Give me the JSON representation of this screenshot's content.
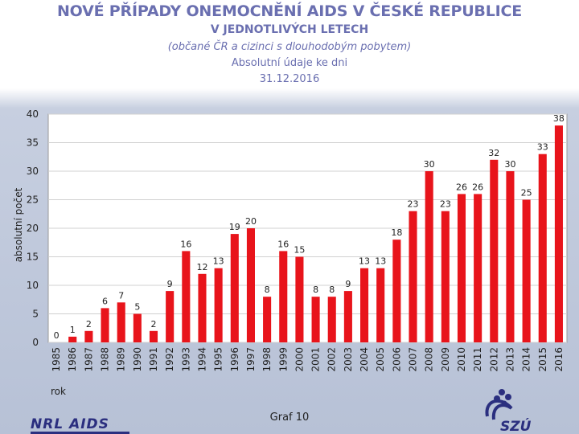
{
  "header": {
    "title": "NOVÉ PŘÍPADY ONEMOCNĚNÍ AIDS V ČESKÉ REPUBLICE",
    "subtitle": "V JEDNOTLIVÝCH LETECH",
    "note": "(občané ČR a cizinci s dlouhodobým pobytem)",
    "absolute_line": "Absolutní údaje ke dni",
    "date": "31.12.2016"
  },
  "footer": {
    "graph_label": "Graf 10",
    "left_logo": "NRL AIDS",
    "right_logo": "SZÚ"
  },
  "colors": {
    "title": "#6a6fb0",
    "bar": "#e8141b",
    "plot_bg": "#ffffff",
    "grid": "#d0d0d0"
  },
  "chart_data": {
    "type": "bar",
    "title": "",
    "xlabel": "rok",
    "ylabel": "absolutní počet",
    "ylim": [
      0,
      40
    ],
    "yticks": [
      0,
      5,
      10,
      15,
      20,
      25,
      30,
      35,
      40
    ],
    "categories": [
      "1985",
      "1986",
      "1987",
      "1988",
      "1989",
      "1990",
      "1991",
      "1992",
      "1993",
      "1994",
      "1995",
      "1996",
      "1997",
      "1998",
      "1999",
      "2000",
      "2001",
      "2002",
      "2003",
      "2004",
      "2005",
      "2006",
      "2007",
      "2008",
      "2009",
      "2010",
      "2011",
      "2012",
      "2013",
      "2014",
      "2015",
      "2016"
    ],
    "values": [
      0,
      1,
      2,
      6,
      7,
      5,
      2,
      9,
      16,
      12,
      13,
      19,
      20,
      8,
      16,
      15,
      8,
      8,
      9,
      13,
      13,
      18,
      23,
      30,
      23,
      26,
      26,
      32,
      30,
      25,
      33,
      38
    ]
  }
}
